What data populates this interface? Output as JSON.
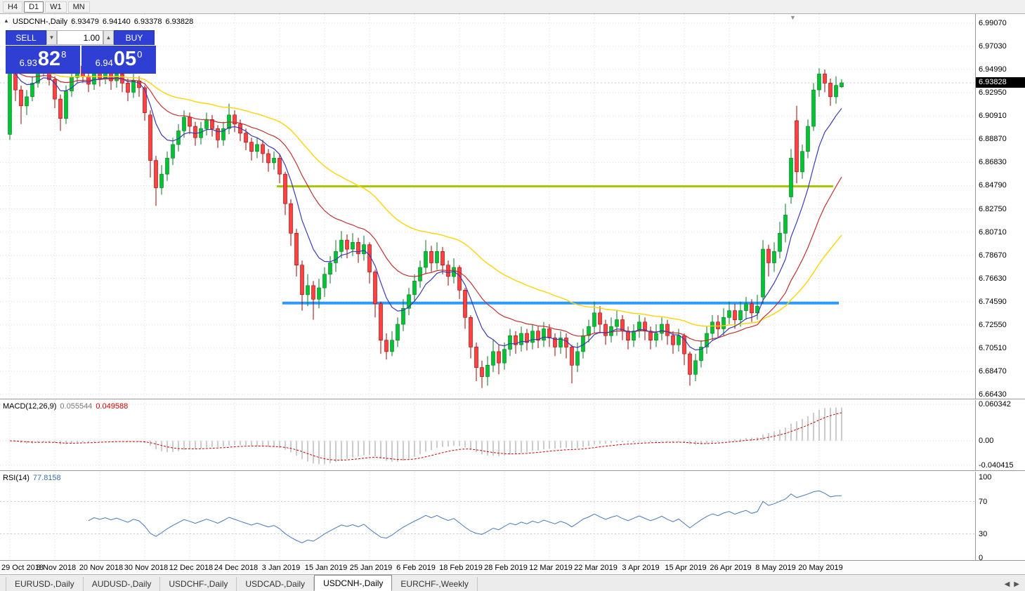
{
  "window": {
    "timeframes": [
      {
        "label": "H4",
        "active": false
      },
      {
        "label": "D1",
        "active": true
      },
      {
        "label": "W1",
        "active": false
      },
      {
        "label": "MN",
        "active": false
      }
    ]
  },
  "symbol_header": {
    "collapse_icon": "▲",
    "title": "USDCNH-,Daily",
    "open": "6.93479",
    "high": "6.94140",
    "low": "6.93378",
    "close": "6.93828"
  },
  "trade_panel": {
    "sell_label": "SELL",
    "buy_label": "BUY",
    "volume": "1.00",
    "down_arrow": "▼",
    "up_arrow": "▲",
    "sell_price_prefix": "6.93",
    "sell_price_big": "82",
    "sell_price_sup": "8",
    "buy_price_prefix": "6.94",
    "buy_price_big": "05",
    "buy_price_sup": "0"
  },
  "price_tag": "6.93828",
  "shift_marker_icon": "▼",
  "colors": {
    "candle_up": "#00C432",
    "candle_up_border": "#007A1F",
    "candle_down": "#FF4040",
    "candle_down_border": "#A00000",
    "hline_green": "#A6C400",
    "hline_blue": "#2E9AFE",
    "macd_hist": "#9A9A9A",
    "macd_signal": "#CC0000",
    "rsi_line": "#4879B8",
    "grid": "#D9D9D9",
    "trade_blue": "#2F3FD4",
    "price_tag_bg": "#000000",
    "bid_line": "#C8C8C8"
  },
  "chart_data": {
    "type": "candlestick",
    "symbol": "USDCNH-,Daily",
    "bid": 6.93828,
    "label_every": 8,
    "x_labels": [
      "29 Oct 2018",
      "8 Nov 2018",
      "20 Nov 2018",
      "30 Nov 2018",
      "12 Dec 2018",
      "24 Dec 2018",
      "3 Jan 2019",
      "15 Jan 2019",
      "25 Jan 2019",
      "6 Feb 2019",
      "18 Feb 2019",
      "28 Feb 2019",
      "12 Mar 2019",
      "22 Mar 2019",
      "3 Apr 2019",
      "15 Apr 2019",
      "26 Apr 2019",
      "8 May 2019",
      "20 May 2019"
    ],
    "y_axis": {
      "max": 6.9907,
      "min": 6.6643,
      "step": 0.0204,
      "labels": [
        "6.99070",
        "6.97030",
        "6.94990",
        "6.92950",
        "6.90910",
        "6.88870",
        "6.86830",
        "6.84790",
        "6.82750",
        "6.80710",
        "6.78670",
        "6.76630",
        "6.74590",
        "6.72550",
        "6.70510",
        "6.68470",
        "6.66430"
      ]
    },
    "hlines": [
      {
        "price": 6.8473,
        "color_key": "hline_green",
        "from_bar": 48,
        "to_bar": 146,
        "width": 3
      },
      {
        "price": 6.7447,
        "color_key": "hline_blue",
        "from_bar": 49,
        "to_bar": 147,
        "width": 4
      }
    ],
    "moving_averages": [
      {
        "period": 8,
        "color": "#3A3AB4",
        "width": 1.2
      },
      {
        "period": 21,
        "color": "#C03030",
        "width": 1.2
      },
      {
        "period": 45,
        "color": "#FFD400",
        "width": 1.4
      }
    ],
    "indicators": {
      "macd": {
        "name": "MACD(12,26,9)",
        "value_main": "0.055544",
        "value_signal": "0.049588",
        "fast": 12,
        "slow": 26,
        "signal": 9,
        "axis": [
          0.060342,
          0,
          -0.040415
        ],
        "axis_labels": [
          "0.060342",
          "0.00",
          "-0.040415"
        ]
      },
      "rsi": {
        "name": "RSI(14)",
        "value": "77.8158",
        "period": 14,
        "levels": [
          70,
          30
        ],
        "axis": [
          100,
          70,
          30,
          0
        ],
        "axis_labels": [
          "100",
          "70",
          "30",
          "0"
        ]
      }
    },
    "candles": [
      [
        6.893,
        6.958,
        6.888,
        6.95
      ],
      [
        6.95,
        6.952,
        6.922,
        6.932
      ],
      [
        6.932,
        6.936,
        6.902,
        6.918
      ],
      [
        6.918,
        6.932,
        6.91,
        6.926
      ],
      [
        6.926,
        6.944,
        6.922,
        6.938
      ],
      [
        6.938,
        6.956,
        6.934,
        6.949
      ],
      [
        6.949,
        6.96,
        6.944,
        6.953
      ],
      [
        6.953,
        6.956,
        6.936,
        6.941
      ],
      [
        6.941,
        6.944,
        6.916,
        6.924
      ],
      [
        6.924,
        6.928,
        6.896,
        6.907
      ],
      [
        6.907,
        6.936,
        6.902,
        6.931
      ],
      [
        6.931,
        6.948,
        6.926,
        6.943
      ],
      [
        6.943,
        6.959,
        6.938,
        6.953
      ],
      [
        6.953,
        6.957,
        6.938,
        6.944
      ],
      [
        6.944,
        6.949,
        6.93,
        6.937
      ],
      [
        6.937,
        6.954,
        6.932,
        6.949
      ],
      [
        6.949,
        6.953,
        6.935,
        6.942
      ],
      [
        6.942,
        6.955,
        6.937,
        6.948
      ],
      [
        6.948,
        6.951,
        6.932,
        6.94
      ],
      [
        6.94,
        6.952,
        6.934,
        6.946
      ],
      [
        6.946,
        6.95,
        6.93,
        6.938
      ],
      [
        6.938,
        6.942,
        6.922,
        6.93
      ],
      [
        6.93,
        6.946,
        6.925,
        6.94
      ],
      [
        6.94,
        6.944,
        6.926,
        6.934
      ],
      [
        6.934,
        6.936,
        6.905,
        6.912
      ],
      [
        6.91,
        6.914,
        6.855,
        6.87
      ],
      [
        6.87,
        6.874,
        6.83,
        6.846
      ],
      [
        6.846,
        6.866,
        6.84,
        6.858
      ],
      [
        6.858,
        6.878,
        6.852,
        6.872
      ],
      [
        6.872,
        6.89,
        6.866,
        6.884
      ],
      [
        6.884,
        6.902,
        6.878,
        6.896
      ],
      [
        6.896,
        6.914,
        6.89,
        6.908
      ],
      [
        6.908,
        6.912,
        6.893,
        6.9
      ],
      [
        6.9,
        6.904,
        6.883,
        6.89
      ],
      [
        6.89,
        6.904,
        6.884,
        6.898
      ],
      [
        6.898,
        6.912,
        6.892,
        6.906
      ],
      [
        6.906,
        6.91,
        6.891,
        6.898
      ],
      [
        6.898,
        6.901,
        6.881,
        6.888
      ],
      [
        6.888,
        6.904,
        6.883,
        6.898
      ],
      [
        6.898,
        6.92,
        6.893,
        6.91
      ],
      [
        6.91,
        6.914,
        6.895,
        6.902
      ],
      [
        6.902,
        6.906,
        6.887,
        6.894
      ],
      [
        6.894,
        6.898,
        6.879,
        6.886
      ],
      [
        6.886,
        6.89,
        6.87,
        6.878
      ],
      [
        6.878,
        6.89,
        6.872,
        6.884
      ],
      [
        6.884,
        6.888,
        6.868,
        6.876
      ],
      [
        6.876,
        6.88,
        6.86,
        6.868
      ],
      [
        6.868,
        6.878,
        6.862,
        6.872
      ],
      [
        6.872,
        6.876,
        6.85,
        6.858
      ],
      [
        6.858,
        6.86,
        6.822,
        6.832
      ],
      [
        6.832,
        6.836,
        6.795,
        6.806
      ],
      [
        6.806,
        6.81,
        6.768,
        6.778
      ],
      [
        6.778,
        6.782,
        6.738,
        6.752
      ],
      [
        6.752,
        6.77,
        6.742,
        6.76
      ],
      [
        6.76,
        6.764,
        6.73,
        6.748
      ],
      [
        6.748,
        6.766,
        6.74,
        6.758
      ],
      [
        6.758,
        6.776,
        6.75,
        6.77
      ],
      [
        6.77,
        6.786,
        6.762,
        6.78
      ],
      [
        6.78,
        6.8,
        6.772,
        6.79
      ],
      [
        6.79,
        6.808,
        6.784,
        6.8
      ],
      [
        6.8,
        6.805,
        6.784,
        6.792
      ],
      [
        6.792,
        6.806,
        6.786,
        6.798
      ],
      [
        6.798,
        6.802,
        6.78,
        6.788
      ],
      [
        6.788,
        6.804,
        6.782,
        6.796
      ],
      [
        6.796,
        6.798,
        6.762,
        6.772
      ],
      [
        6.772,
        6.774,
        6.732,
        6.744
      ],
      [
        6.744,
        6.746,
        6.7,
        6.712
      ],
      [
        6.712,
        6.718,
        6.695,
        6.702
      ],
      [
        6.702,
        6.72,
        6.698,
        6.712
      ],
      [
        6.712,
        6.732,
        6.706,
        6.726
      ],
      [
        6.726,
        6.748,
        6.72,
        6.74
      ],
      [
        6.74,
        6.758,
        6.734,
        6.752
      ],
      [
        6.752,
        6.77,
        6.746,
        6.764
      ],
      [
        6.764,
        6.782,
        6.758,
        6.776
      ],
      [
        6.776,
        6.8,
        6.77,
        6.79
      ],
      [
        6.79,
        6.795,
        6.772,
        6.78
      ],
      [
        6.78,
        6.798,
        6.774,
        6.79
      ],
      [
        6.79,
        6.794,
        6.77,
        6.778
      ],
      [
        6.778,
        6.782,
        6.76,
        6.768
      ],
      [
        6.768,
        6.784,
        6.762,
        6.776
      ],
      [
        6.776,
        6.778,
        6.748,
        6.756
      ],
      [
        6.756,
        6.758,
        6.722,
        6.732
      ],
      [
        6.732,
        6.734,
        6.696,
        6.706
      ],
      [
        6.706,
        6.71,
        6.676,
        6.688
      ],
      [
        6.688,
        6.694,
        6.67,
        6.68
      ],
      [
        6.68,
        6.698,
        6.672,
        6.69
      ],
      [
        6.69,
        6.712,
        6.684,
        6.702
      ],
      [
        6.702,
        6.708,
        6.682,
        6.692
      ],
      [
        6.692,
        6.71,
        6.686,
        6.704
      ],
      [
        6.704,
        6.722,
        6.698,
        6.716
      ],
      [
        6.716,
        6.72,
        6.7,
        6.708
      ],
      [
        6.708,
        6.724,
        6.702,
        6.718
      ],
      [
        6.718,
        6.722,
        6.703,
        6.71
      ],
      [
        6.71,
        6.726,
        6.704,
        6.72
      ],
      [
        6.72,
        6.724,
        6.705,
        6.712
      ],
      [
        6.712,
        6.728,
        6.706,
        6.722
      ],
      [
        6.722,
        6.726,
        6.706,
        6.714
      ],
      [
        6.714,
        6.718,
        6.698,
        6.706
      ],
      [
        6.706,
        6.72,
        6.7,
        6.714
      ],
      [
        6.714,
        6.718,
        6.696,
        6.706
      ],
      [
        6.706,
        6.708,
        6.674,
        6.69
      ],
      [
        6.69,
        6.71,
        6.684,
        6.702
      ],
      [
        6.702,
        6.722,
        6.696,
        6.716
      ],
      [
        6.716,
        6.73,
        6.71,
        6.724
      ],
      [
        6.724,
        6.746,
        6.718,
        6.736
      ],
      [
        6.736,
        6.742,
        6.718,
        6.726
      ],
      [
        6.726,
        6.73,
        6.708,
        6.716
      ],
      [
        6.716,
        6.732,
        6.71,
        6.724
      ],
      [
        6.724,
        6.738,
        6.716,
        6.73
      ],
      [
        6.73,
        6.734,
        6.712,
        6.72
      ],
      [
        6.72,
        6.724,
        6.704,
        6.712
      ],
      [
        6.712,
        6.726,
        6.706,
        6.72
      ],
      [
        6.72,
        6.734,
        6.714,
        6.728
      ],
      [
        6.728,
        6.732,
        6.712,
        6.72
      ],
      [
        6.72,
        6.724,
        6.704,
        6.712
      ],
      [
        6.712,
        6.726,
        6.706,
        6.718
      ],
      [
        6.718,
        6.732,
        6.712,
        6.726
      ],
      [
        6.726,
        6.73,
        6.708,
        6.716
      ],
      [
        6.716,
        6.72,
        6.7,
        6.708
      ],
      [
        6.708,
        6.722,
        6.702,
        6.716
      ],
      [
        6.716,
        6.718,
        6.69,
        6.7
      ],
      [
        6.7,
        6.702,
        6.672,
        6.682
      ],
      [
        6.682,
        6.7,
        6.676,
        6.694
      ],
      [
        6.694,
        6.712,
        6.688,
        6.706
      ],
      [
        6.706,
        6.724,
        6.7,
        6.718
      ],
      [
        6.718,
        6.734,
        6.712,
        6.728
      ],
      [
        6.728,
        6.734,
        6.714,
        6.722
      ],
      [
        6.722,
        6.74,
        6.716,
        6.732
      ],
      [
        6.732,
        6.746,
        6.726,
        6.738
      ],
      [
        6.738,
        6.744,
        6.722,
        6.73
      ],
      [
        6.73,
        6.746,
        6.724,
        6.738
      ],
      [
        6.738,
        6.75,
        6.73,
        6.744
      ],
      [
        6.744,
        6.748,
        6.728,
        6.736
      ],
      [
        6.736,
        6.752,
        6.73,
        6.742
      ],
      [
        6.75,
        6.8,
        6.744,
        6.792
      ],
      [
        6.792,
        6.796,
        6.768,
        6.78
      ],
      [
        6.78,
        6.798,
        6.772,
        6.79
      ],
      [
        6.79,
        6.816,
        6.784,
        6.806
      ],
      [
        6.806,
        6.832,
        6.798,
        6.822
      ],
      [
        6.838,
        6.88,
        6.832,
        6.872
      ],
      [
        6.905,
        6.918,
        6.85,
        6.86
      ],
      [
        6.86,
        6.884,
        6.854,
        6.878
      ],
      [
        6.878,
        6.906,
        6.872,
        6.9
      ],
      [
        6.9,
        6.938,
        6.896,
        6.932
      ],
      [
        6.932,
        6.951,
        6.926,
        6.946
      ],
      [
        6.946,
        6.95,
        6.93,
        6.938
      ],
      [
        6.938,
        6.942,
        6.918,
        6.926
      ],
      [
        6.926,
        6.944,
        6.92,
        6.936
      ],
      [
        6.93479,
        6.9414,
        6.93378,
        6.93828
      ]
    ]
  },
  "tabs": {
    "items": [
      {
        "label": "EURUSD-,Daily",
        "active": false
      },
      {
        "label": "AUDUSD-,Daily",
        "active": false
      },
      {
        "label": "USDCHF-,Daily",
        "active": false
      },
      {
        "label": "USDCAD-,Daily",
        "active": false
      },
      {
        "label": "USDCNH-,Daily",
        "active": true
      },
      {
        "label": "EURCHF-,Weekly",
        "active": false
      }
    ],
    "scroll_left": "◀",
    "scroll_right": "▶"
  }
}
